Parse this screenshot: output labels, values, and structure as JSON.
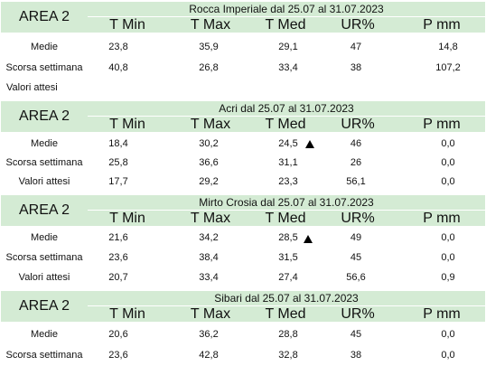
{
  "columns": [
    "T Min",
    "T Max",
    "T Med",
    "UR%",
    "P mm"
  ],
  "blocks": [
    {
      "area": "AREA 2",
      "site": "Rocca Imperiale  dal 25.07 al 31.07.2023",
      "rows": [
        {
          "label": "Medie",
          "values": [
            "23,8",
            "35,9",
            "29,1",
            "47",
            "14,8"
          ]
        },
        {
          "label": "Scorsa settimana",
          "values": [
            "40,8",
            "26,8",
            "33,4",
            "38",
            "107,2"
          ]
        },
        {
          "label": "Valori attesi",
          "values": [
            "",
            "",
            "",
            "",
            ""
          ]
        }
      ]
    },
    {
      "area": "AREA 2",
      "site": "Acri dal 25.07 al 31.07.2023",
      "rows": [
        {
          "label": "Medie",
          "values": [
            "18,4",
            "30,2",
            "24,5",
            "46",
            "0,0"
          ]
        },
        {
          "label": "Scorsa settimana",
          "values": [
            "25,8",
            "36,6",
            "31,1",
            "26",
            "0,0"
          ]
        },
        {
          "label": "Valori attesi",
          "values": [
            "17,7",
            "29,2",
            "23,3",
            "56,1",
            "0,0"
          ]
        }
      ]
    },
    {
      "area": "AREA 2",
      "site": "Mirto Crosia dal 25.07 al 31.07.2023",
      "rows": [
        {
          "label": "Medie",
          "values": [
            "21,6",
            "34,2",
            "28,5",
            "49",
            "0,0"
          ]
        },
        {
          "label": "Scorsa settimana",
          "values": [
            "23,6",
            "38,4",
            "31,5",
            "45",
            "0,0"
          ]
        },
        {
          "label": "Valori attesi",
          "values": [
            "20,7",
            "33,4",
            "27,4",
            "56,6",
            "0,9"
          ]
        }
      ]
    },
    {
      "area": "AREA 2",
      "site": "Sibari dal 25.07 al 31.07.2023",
      "rows": [
        {
          "label": "Medie",
          "values": [
            "20,6",
            "36,2",
            "28,8",
            "45",
            "0,0"
          ]
        },
        {
          "label": "Scorsa settimana",
          "values": [
            "23,6",
            "42,8",
            "32,8",
            "38",
            "0,0"
          ]
        }
      ]
    }
  ]
}
